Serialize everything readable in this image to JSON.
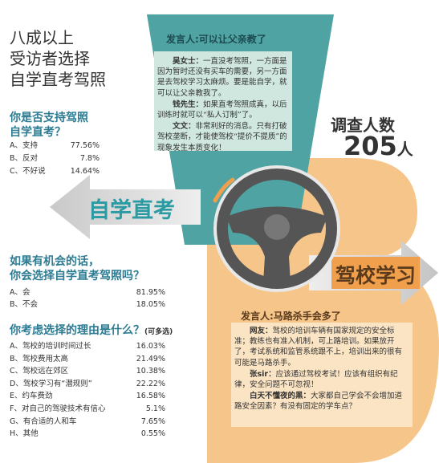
{
  "headline": {
    "lines": [
      "八成以上",
      "受访者选择",
      "自学直考驾照"
    ]
  },
  "survey": {
    "label": "调查人数",
    "count": "205",
    "unit": "人"
  },
  "q1": {
    "title_lines": [
      "你是否支持驾照",
      "自学直考？"
    ],
    "options": [
      {
        "label": "A、支持",
        "pct": "77.56%"
      },
      {
        "label": "B、反对",
        "pct": "7.8%"
      },
      {
        "label": "C、不好说",
        "pct": "14.64%"
      }
    ]
  },
  "q2": {
    "title_lines": [
      "如果有机会的话，",
      "你会选择自学直考驾照吗？"
    ],
    "options": [
      {
        "label": "A、会",
        "pct": "81.95%"
      },
      {
        "label": "B、不会",
        "pct": "18.05%"
      }
    ]
  },
  "q3": {
    "title": "你考虑选择的理由是什么？",
    "note": "(可多选)",
    "options": [
      {
        "label": "A、驾校的培训时间过长",
        "pct": "16.03%"
      },
      {
        "label": "B、驾校费用太高",
        "pct": "21.49%"
      },
      {
        "label": "C、驾校远在郊区",
        "pct": "10.38%"
      },
      {
        "label": "D、驾校学习有“潜规则”",
        "pct": "22.22%"
      },
      {
        "label": "E、约车费劲",
        "pct": "16.58%"
      },
      {
        "label": "F、对自己的驾驶技术有信心",
        "pct": "5.1%"
      },
      {
        "label": "G、有合适的人和车",
        "pct": "7.65%"
      },
      {
        "label": "H、其他",
        "pct": "0.55%"
      }
    ]
  },
  "arrows": {
    "left": "自学直考",
    "right": "驾校学习"
  },
  "panel_top": {
    "heading": "发言人:可以让父亲教了",
    "speakers": [
      {
        "name": "吴女士：",
        "text": "一直没考驾照，一方面是因为暂时还没有买车的需要，另一方面是去驾校学习太麻烦。要是能自学，就可以让父亲教我了。"
      },
      {
        "name": "钱先生：",
        "text": "如果直考驾照成真，以后训练时就可以“私人订制”了。"
      },
      {
        "name": "文文：",
        "text": "非常利好的消息。只有打破驾校垄断，才能使驾校“提价不提质”的现象发生本质变化！"
      }
    ]
  },
  "panel_bottom": {
    "heading": "发言人:马路杀手会多了",
    "speakers": [
      {
        "name": "网友：",
        "text": "驾校的培训车辆有国家规定的安全标准；教练也有准入机制，可上路培训。如果放开了，考试系统和监管系统跟不上，培训出来的很有可能是马路杀手。"
      },
      {
        "name": "张sir：",
        "text": "应该通过驾校考试！应该有组织有纪律，安全问题不可忽视！"
      },
      {
        "name": "白天不懂夜的黑：",
        "text": "大家都自己学会不会增加道路安全因素？有没有固定的学车点？"
      }
    ]
  }
}
